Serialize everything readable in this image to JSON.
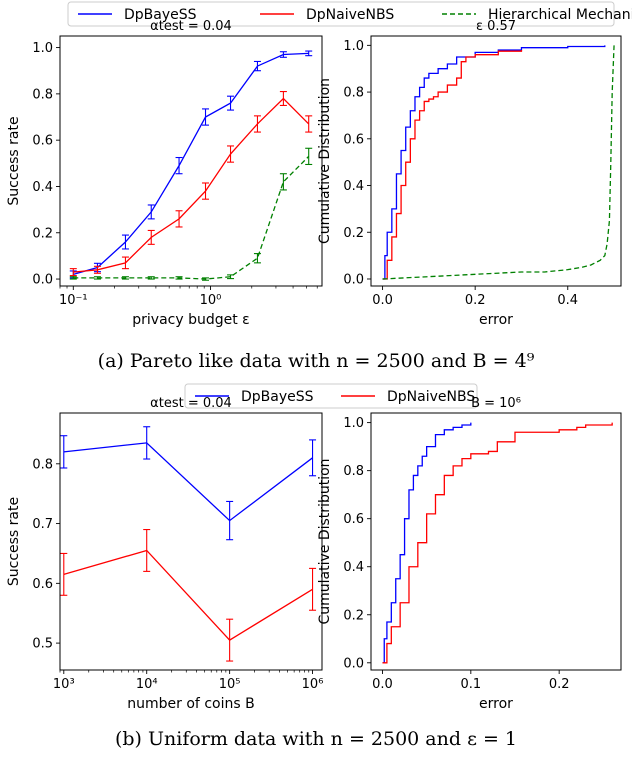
{
  "figure": {
    "caption_a": "(a) Pareto like data with n = 2500 and B = 4⁹",
    "caption_b": "(b) Uniform data with n = 2500 and ε = 1"
  },
  "legends": [
    {
      "entries": [
        {
          "name": "DpBayeSS",
          "color": "#0000ff",
          "dash": "solid"
        },
        {
          "name": "DpNaiveNBS",
          "color": "#ff0000",
          "dash": "solid"
        },
        {
          "name": "Hierarchical Mechanism",
          "color": "#008000",
          "dash": "dashed"
        }
      ]
    },
    {
      "entries": [
        {
          "name": "DpBayeSS",
          "color": "#0000ff",
          "dash": "solid"
        },
        {
          "name": "DpNaiveNBS",
          "color": "#ff0000",
          "dash": "solid"
        }
      ]
    }
  ],
  "chart_data": [
    {
      "type": "line",
      "title": "αtest = 0.04",
      "xlabel": "privacy budget ε",
      "ylabel": "Success rate",
      "xscale": "log",
      "xlim": [
        0.08,
        6.5
      ],
      "ylim": [
        -0.03,
        1.05
      ],
      "x_ticks": [
        0.1,
        1
      ],
      "x_tick_labels": [
        "10⁻¹",
        "10⁰"
      ],
      "y_ticks": [
        0.0,
        0.2,
        0.4,
        0.6,
        0.8,
        1.0
      ],
      "y_tick_labels": [
        "0.0",
        "0.2",
        "0.4",
        "0.6",
        "0.8",
        "1.0"
      ],
      "x": [
        0.1,
        0.15,
        0.24,
        0.37,
        0.59,
        0.92,
        1.4,
        2.2,
        3.4,
        5.2
      ],
      "series": [
        {
          "name": "DpBayeSS",
          "color": "#0000ff",
          "dash": "solid",
          "errorbars": true,
          "values": [
            0.02,
            0.05,
            0.16,
            0.29,
            0.49,
            0.7,
            0.76,
            0.92,
            0.97,
            0.975
          ],
          "errors": [
            0.015,
            0.018,
            0.03,
            0.03,
            0.035,
            0.035,
            0.03,
            0.02,
            0.012,
            0.01
          ]
        },
        {
          "name": "DpNaiveNBS",
          "color": "#ff0000",
          "dash": "solid",
          "errorbars": true,
          "values": [
            0.03,
            0.04,
            0.07,
            0.18,
            0.26,
            0.38,
            0.54,
            0.67,
            0.78,
            0.67
          ],
          "errors": [
            0.015,
            0.015,
            0.025,
            0.03,
            0.035,
            0.035,
            0.035,
            0.035,
            0.03,
            0.035
          ]
        },
        {
          "name": "Hierarchical Mechanism",
          "color": "#008000",
          "dash": "dashed",
          "errorbars": true,
          "values": [
            0.005,
            0.005,
            0.005,
            0.005,
            0.005,
            0.0,
            0.01,
            0.09,
            0.42,
            0.53
          ],
          "errors": [
            0.005,
            0.005,
            0.005,
            0.005,
            0.005,
            0.005,
            0.008,
            0.02,
            0.035,
            0.035
          ]
        }
      ]
    },
    {
      "type": "line",
      "title": "ε 0.57",
      "xlabel": "error",
      "ylabel": "Cumulative Distribution",
      "xlim": [
        -0.025,
        0.515
      ],
      "ylim": [
        -0.03,
        1.04
      ],
      "x_ticks": [
        0.0,
        0.2,
        0.4
      ],
      "x_tick_labels": [
        "0.0",
        "0.2",
        "0.4"
      ],
      "y_ticks": [
        0.0,
        0.2,
        0.4,
        0.6,
        0.8,
        1.0
      ],
      "y_tick_labels": [
        "0.0",
        "0.2",
        "0.4",
        "0.6",
        "0.8",
        "1.0"
      ],
      "series": [
        {
          "name": "DpBayeSS",
          "color": "#0000ff",
          "dash": "solid",
          "step": true,
          "x": [
            0.0,
            0.005,
            0.01,
            0.02,
            0.03,
            0.04,
            0.05,
            0.06,
            0.07,
            0.08,
            0.09,
            0.1,
            0.12,
            0.14,
            0.16,
            0.2,
            0.25,
            0.3,
            0.4,
            0.48
          ],
          "y": [
            0.0,
            0.1,
            0.2,
            0.3,
            0.45,
            0.55,
            0.65,
            0.72,
            0.78,
            0.82,
            0.86,
            0.88,
            0.9,
            0.92,
            0.95,
            0.97,
            0.98,
            0.99,
            0.995,
            1.0
          ]
        },
        {
          "name": "DpNaiveNBS",
          "color": "#ff0000",
          "dash": "solid",
          "step": true,
          "x": [
            0.0,
            0.01,
            0.02,
            0.03,
            0.04,
            0.05,
            0.06,
            0.07,
            0.08,
            0.09,
            0.1,
            0.11,
            0.12,
            0.14,
            0.16,
            0.17,
            0.18,
            0.2,
            0.25,
            0.3
          ],
          "y": [
            0.0,
            0.08,
            0.18,
            0.28,
            0.4,
            0.5,
            0.6,
            0.68,
            0.72,
            0.76,
            0.77,
            0.78,
            0.8,
            0.83,
            0.86,
            0.93,
            0.95,
            0.96,
            0.975,
            0.98
          ]
        },
        {
          "name": "Hierarchical Mechanism",
          "color": "#008000",
          "dash": "dashed",
          "step": false,
          "x": [
            0.0,
            0.1,
            0.2,
            0.3,
            0.35,
            0.4,
            0.43,
            0.45,
            0.47,
            0.48,
            0.485,
            0.49,
            0.493,
            0.496,
            0.5
          ],
          "y": [
            0.0,
            0.01,
            0.02,
            0.03,
            0.03,
            0.04,
            0.05,
            0.06,
            0.08,
            0.1,
            0.15,
            0.25,
            0.5,
            0.8,
            1.0
          ]
        }
      ]
    },
    {
      "type": "line",
      "title": "αtest = 0.04",
      "xlabel": "number of coins B",
      "ylabel": "Success rate",
      "xscale": "log",
      "xlim": [
        900,
        1300000
      ],
      "ylim": [
        0.455,
        0.885
      ],
      "x_ticks": [
        1000,
        10000,
        100000,
        1000000
      ],
      "x_tick_labels": [
        "10³",
        "10⁴",
        "10⁵",
        "10⁶"
      ],
      "y_ticks": [
        0.5,
        0.6,
        0.7,
        0.8
      ],
      "y_tick_labels": [
        "0.5",
        "0.6",
        "0.7",
        "0.8"
      ],
      "x": [
        1000,
        10000,
        100000,
        1000000
      ],
      "series": [
        {
          "name": "DpBayeSS",
          "color": "#0000ff",
          "dash": "solid",
          "errorbars": true,
          "values": [
            0.82,
            0.835,
            0.705,
            0.81
          ],
          "errors": [
            0.027,
            0.027,
            0.032,
            0.03
          ]
        },
        {
          "name": "DpNaiveNBS",
          "color": "#ff0000",
          "dash": "solid",
          "errorbars": true,
          "values": [
            0.615,
            0.655,
            0.505,
            0.59
          ],
          "errors": [
            0.035,
            0.035,
            0.035,
            0.035
          ]
        }
      ]
    },
    {
      "type": "line",
      "title": "B = 10⁶",
      "xlabel": "error",
      "ylabel": "Cumulative Distribution",
      "xlim": [
        -0.013,
        0.27
      ],
      "ylim": [
        -0.03,
        1.04
      ],
      "x_ticks": [
        0.0,
        0.1,
        0.2
      ],
      "x_tick_labels": [
        "0.0",
        "0.1",
        "0.2"
      ],
      "y_ticks": [
        0.0,
        0.2,
        0.4,
        0.6,
        0.8,
        1.0
      ],
      "y_tick_labels": [
        "0.0",
        "0.2",
        "0.4",
        "0.6",
        "0.8",
        "1.0"
      ],
      "series": [
        {
          "name": "DpBayeSS",
          "color": "#0000ff",
          "dash": "solid",
          "step": true,
          "x": [
            0.0,
            0.002,
            0.005,
            0.01,
            0.015,
            0.02,
            0.025,
            0.03,
            0.035,
            0.04,
            0.045,
            0.05,
            0.06,
            0.07,
            0.08,
            0.09,
            0.1
          ],
          "y": [
            0.0,
            0.1,
            0.17,
            0.25,
            0.35,
            0.45,
            0.6,
            0.72,
            0.78,
            0.82,
            0.86,
            0.9,
            0.95,
            0.97,
            0.98,
            0.99,
            1.0
          ]
        },
        {
          "name": "DpNaiveNBS",
          "color": "#ff0000",
          "dash": "solid",
          "step": true,
          "x": [
            0.0,
            0.005,
            0.01,
            0.02,
            0.03,
            0.04,
            0.05,
            0.06,
            0.07,
            0.08,
            0.09,
            0.1,
            0.12,
            0.13,
            0.15,
            0.2,
            0.22,
            0.23,
            0.26
          ],
          "y": [
            0.0,
            0.08,
            0.15,
            0.25,
            0.4,
            0.5,
            0.62,
            0.7,
            0.78,
            0.82,
            0.85,
            0.87,
            0.88,
            0.92,
            0.96,
            0.97,
            0.98,
            0.99,
            1.0
          ]
        }
      ]
    }
  ]
}
